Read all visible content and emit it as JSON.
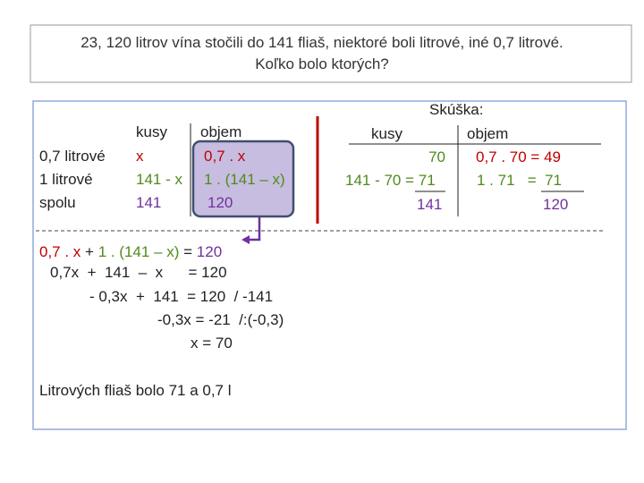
{
  "header": {
    "lines": [
      "23, 120 litrov vína stočili do 141 fliaš, niektoré boli litrové, iné 0,7 litrové.",
      "Koľko bolo ktorých?"
    ]
  },
  "table": {
    "header": [
      "kusy",
      "objem"
    ],
    "rows": [
      [
        "0,7 litrové",
        "x",
        "0,7 . x"
      ],
      [
        "1 litrové",
        "141 - x",
        "1 . (141 – x)"
      ],
      [
        "spolu",
        "141",
        "120"
      ]
    ]
  },
  "check": {
    "title": "Skúška:",
    "header": [
      "kusy",
      "objem"
    ],
    "rows": [
      [
        "70",
        "0,7 . 70 = 49"
      ],
      [
        "141 - 70 = 71",
        "1 . 71   =  71"
      ],
      [
        "141",
        "120"
      ]
    ]
  },
  "solution": {
    "equation_parts": [
      "0,7 . x",
      " + ",
      "1 . (141 – x)",
      " = ",
      "120"
    ],
    "steps": [
      "0,7x  +  141  –  x      = 120",
      "- 0,3x  +  141  = 120  / -141",
      "-0,3x = -21  /:(-0,3)",
      "x = 70"
    ],
    "answer": "Litrových fliaš bolo 71 a 0,7 l"
  }
}
